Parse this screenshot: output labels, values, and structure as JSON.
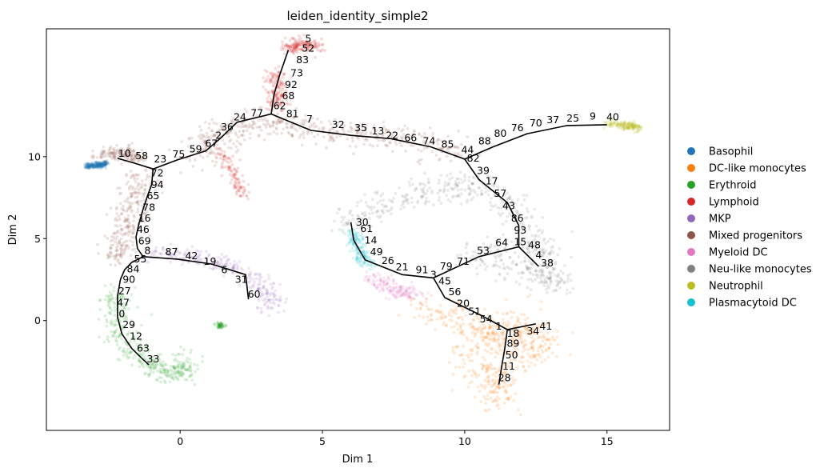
{
  "chart_data": {
    "type": "scatter",
    "title": "leiden_identity_simple2",
    "xlabel": "Dim 1",
    "ylabel": "Dim 2",
    "xlim": [
      -4.7,
      17.2
    ],
    "ylim": [
      -6.7,
      17.8
    ],
    "xticks": [
      0,
      5,
      10,
      15
    ],
    "yticks": [
      0,
      5,
      10
    ],
    "legend_position": "right-outside",
    "legend": [
      {
        "name": "Basophil",
        "color": "#1f77b4"
      },
      {
        "name": "DC-like monocytes",
        "color": "#ff7f0e"
      },
      {
        "name": "Erythroid",
        "color": "#2ca02c"
      },
      {
        "name": "Lymphoid",
        "color": "#d62728"
      },
      {
        "name": "MKP",
        "color": "#9467bd"
      },
      {
        "name": "Mixed progenitors",
        "color": "#8c564b"
      },
      {
        "name": "Myeloid DC",
        "color": "#e377c2"
      },
      {
        "name": "Neu-like monocytes",
        "color": "#7f7f7f"
      },
      {
        "name": "Neutrophil",
        "color": "#bcbd22"
      },
      {
        "name": "Plasmacytoid DC",
        "color": "#17becf"
      }
    ],
    "clusters": [
      {
        "cat": 0,
        "pts": [
          [
            -3.3,
            9.4
          ],
          [
            -3.05,
            9.45
          ],
          [
            -2.8,
            9.5
          ],
          [
            -2.6,
            9.6
          ]
        ],
        "sd": 0.08
      },
      {
        "cat": 5,
        "pts": [
          [
            -2.7,
            10.1
          ],
          [
            -2.0,
            10.2
          ],
          [
            -1.4,
            10.0
          ]
        ],
        "sd": 0.22
      },
      {
        "cat": 5,
        "pts": [
          [
            0.5,
            10.2
          ],
          [
            1.2,
            10.9
          ],
          [
            2.0,
            11.6
          ],
          [
            3.0,
            12.2
          ],
          [
            4.0,
            11.8
          ],
          [
            5.5,
            11.5
          ],
          [
            7.0,
            11.2
          ],
          [
            8.5,
            10.8
          ],
          [
            10.0,
            10.2
          ]
        ],
        "sd": 0.42
      },
      {
        "cat": 5,
        "pts": [
          [
            -1.3,
            9.0
          ],
          [
            -1.6,
            7.5
          ],
          [
            -1.8,
            6.0
          ],
          [
            -2.1,
            4.6
          ],
          [
            -2.2,
            3.8
          ]
        ],
        "sd": 0.3
      },
      {
        "cat": 3,
        "pts": [
          [
            3.8,
            16.6
          ],
          [
            4.3,
            16.9
          ],
          [
            4.8,
            16.7
          ]
        ],
        "sd": 0.2
      },
      {
        "cat": 3,
        "pts": [
          [
            3.3,
            15.2
          ],
          [
            3.4,
            13.8
          ],
          [
            3.35,
            12.9
          ]
        ],
        "sd": 0.18
      },
      {
        "cat": 3,
        "pts": [
          [
            1.4,
            10.3
          ],
          [
            2.3,
            7.5
          ]
        ],
        "sd": 0.15
      },
      {
        "cat": 4,
        "pts": [
          [
            -1.0,
            4.2
          ],
          [
            0.5,
            3.9
          ],
          [
            2.0,
            3.2
          ],
          [
            3.0,
            1.9
          ],
          [
            3.3,
            0.6
          ]
        ],
        "sd": 0.25
      },
      {
        "cat": 2,
        "pts": [
          [
            -2.2,
            1.8
          ],
          [
            -2.3,
            0.5
          ],
          [
            -2.0,
            -1.0
          ],
          [
            -1.5,
            -2.3
          ],
          [
            -0.7,
            -3.0
          ],
          [
            0.0,
            -3.3
          ],
          [
            0.2,
            -2.2
          ]
        ],
        "sd": 0.3
      },
      {
        "cat": 2,
        "pts": [
          [
            1.4,
            -0.3
          ]
        ],
        "sd": 0.08
      },
      {
        "cat": 9,
        "pts": [
          [
            6.0,
            5.5
          ],
          [
            6.3,
            4.3
          ],
          [
            6.6,
            3.3
          ]
        ],
        "sd": 0.15
      },
      {
        "cat": 6,
        "pts": [
          [
            6.8,
            2.6
          ],
          [
            7.5,
            1.9
          ],
          [
            8.3,
            1.6
          ]
        ],
        "sd": 0.22
      },
      {
        "cat": 1,
        "pts": [
          [
            8.5,
            1.0
          ],
          [
            9.5,
            0.2
          ],
          [
            10.5,
            -0.6
          ],
          [
            11.5,
            -1.2
          ],
          [
            12.2,
            -0.6
          ],
          [
            12.8,
            -1.5
          ],
          [
            11.2,
            -2.6
          ],
          [
            11.0,
            -4.0
          ],
          [
            11.2,
            -5.0
          ],
          [
            10.2,
            -1.8
          ],
          [
            12.5,
            1.0
          ]
        ],
        "sd": 0.45
      },
      {
        "cat": 7,
        "pts": [
          [
            5.8,
            5.8
          ],
          [
            7.0,
            7.0
          ],
          [
            8.5,
            7.8
          ],
          [
            10.0,
            8.3
          ],
          [
            11.5,
            7.3
          ],
          [
            12.3,
            5.5
          ],
          [
            12.8,
            3.7
          ],
          [
            13.3,
            2.2
          ],
          [
            12.0,
            3.0
          ],
          [
            10.2,
            4.0
          ],
          [
            12.9,
            4.8
          ]
        ],
        "sd": 0.4
      },
      {
        "cat": 8,
        "pts": [
          [
            15.0,
            12.1
          ],
          [
            15.6,
            11.9
          ],
          [
            16.1,
            11.75
          ]
        ],
        "sd": 0.12
      }
    ],
    "segments": [
      [
        [
          -2.2,
          9.9
        ],
        [
          -1.6,
          9.6
        ],
        [
          -0.95,
          9.25
        ],
        [
          -1.0,
          8.3
        ],
        [
          -1.15,
          7.6
        ],
        [
          -1.3,
          6.8
        ],
        [
          -1.45,
          5.9
        ],
        [
          -1.55,
          5.1
        ],
        [
          -1.5,
          4.4
        ],
        [
          -1.3,
          3.9
        ],
        [
          -1.7,
          3.55
        ],
        [
          -1.95,
          3.1
        ],
        [
          -2.1,
          2.5
        ],
        [
          -2.2,
          1.5
        ],
        [
          -2.2,
          0.2
        ],
        [
          -2.05,
          -0.8
        ],
        [
          -1.7,
          -1.7
        ],
        [
          -1.35,
          -2.3
        ],
        [
          -1.1,
          -2.7
        ]
      ],
      [
        [
          -1.3,
          3.9
        ],
        [
          -0.1,
          3.75
        ],
        [
          1.1,
          3.45
        ],
        [
          2.3,
          2.8
        ],
        [
          2.4,
          1.3
        ]
      ],
      [
        [
          -0.95,
          9.25
        ],
        [
          -0.1,
          9.8
        ],
        [
          0.9,
          10.35
        ],
        [
          1.4,
          11.1
        ],
        [
          2.0,
          12.1
        ],
        [
          3.2,
          12.6
        ],
        [
          3.3,
          13.8
        ],
        [
          3.5,
          15.0
        ],
        [
          3.8,
          16.5
        ]
      ],
      [
        [
          3.2,
          12.6
        ],
        [
          4.6,
          11.6
        ],
        [
          6.0,
          11.3
        ],
        [
          7.4,
          11.1
        ],
        [
          8.8,
          10.6
        ],
        [
          10.0,
          9.85
        ]
      ],
      [
        [
          10.0,
          9.85
        ],
        [
          11.0,
          10.6
        ],
        [
          12.2,
          11.4
        ],
        [
          13.6,
          11.9
        ],
        [
          15.0,
          11.95
        ]
      ],
      [
        [
          10.0,
          9.85
        ],
        [
          10.5,
          8.6
        ],
        [
          11.5,
          7.2
        ],
        [
          11.9,
          5.8
        ],
        [
          11.9,
          4.5
        ],
        [
          12.6,
          3.3
        ]
      ],
      [
        [
          11.9,
          4.5
        ],
        [
          10.5,
          3.9
        ],
        [
          8.9,
          2.6
        ],
        [
          7.8,
          2.8
        ],
        [
          6.5,
          3.7
        ],
        [
          6.1,
          4.9
        ],
        [
          6.0,
          6.0
        ]
      ],
      [
        [
          8.9,
          2.6
        ],
        [
          9.3,
          1.4
        ],
        [
          10.6,
          0.3
        ],
        [
          11.5,
          -0.55
        ],
        [
          12.5,
          -0.2
        ]
      ],
      [
        [
          11.5,
          -0.55
        ],
        [
          11.4,
          -1.8
        ],
        [
          11.3,
          -2.8
        ],
        [
          11.2,
          -3.9
        ]
      ]
    ],
    "node_labels": [
      {
        "t": "5",
        "x": 4.5,
        "y": 17.0
      },
      {
        "t": "52",
        "x": 4.5,
        "y": 16.4
      },
      {
        "t": "83",
        "x": 4.3,
        "y": 15.7
      },
      {
        "t": "73",
        "x": 4.1,
        "y": 14.9
      },
      {
        "t": "92",
        "x": 3.9,
        "y": 14.2
      },
      {
        "t": "68",
        "x": 3.8,
        "y": 13.5
      },
      {
        "t": "62",
        "x": 3.5,
        "y": 12.9
      },
      {
        "t": "81",
        "x": 3.95,
        "y": 12.4
      },
      {
        "t": "7",
        "x": 4.55,
        "y": 12.1
      },
      {
        "t": "32",
        "x": 5.55,
        "y": 11.75
      },
      {
        "t": "35",
        "x": 6.35,
        "y": 11.55
      },
      {
        "t": "13",
        "x": 6.95,
        "y": 11.35
      },
      {
        "t": "22",
        "x": 7.45,
        "y": 11.1
      },
      {
        "t": "66",
        "x": 8.1,
        "y": 10.95
      },
      {
        "t": "74",
        "x": 8.75,
        "y": 10.75
      },
      {
        "t": "85",
        "x": 9.4,
        "y": 10.55
      },
      {
        "t": "44",
        "x": 10.1,
        "y": 10.2
      },
      {
        "t": "88",
        "x": 10.7,
        "y": 10.75
      },
      {
        "t": "80",
        "x": 11.25,
        "y": 11.2
      },
      {
        "t": "76",
        "x": 11.85,
        "y": 11.55
      },
      {
        "t": "70",
        "x": 12.5,
        "y": 11.85
      },
      {
        "t": "37",
        "x": 13.1,
        "y": 12.05
      },
      {
        "t": "25",
        "x": 13.8,
        "y": 12.15
      },
      {
        "t": "9",
        "x": 14.5,
        "y": 12.25
      },
      {
        "t": "40",
        "x": 15.2,
        "y": 12.2
      },
      {
        "t": "82",
        "x": 10.3,
        "y": 9.7
      },
      {
        "t": "39",
        "x": 10.65,
        "y": 8.95
      },
      {
        "t": "17",
        "x": 10.95,
        "y": 8.3
      },
      {
        "t": "57",
        "x": 11.25,
        "y": 7.55
      },
      {
        "t": "43",
        "x": 11.55,
        "y": 6.8
      },
      {
        "t": "86",
        "x": 11.85,
        "y": 6.05
      },
      {
        "t": "93",
        "x": 11.95,
        "y": 5.3
      },
      {
        "t": "15",
        "x": 11.95,
        "y": 4.6
      },
      {
        "t": "48",
        "x": 12.45,
        "y": 4.4
      },
      {
        "t": "4",
        "x": 12.6,
        "y": 3.8
      },
      {
        "t": "38",
        "x": 12.9,
        "y": 3.3
      },
      {
        "t": "64",
        "x": 11.3,
        "y": 4.55
      },
      {
        "t": "53",
        "x": 10.65,
        "y": 4.05
      },
      {
        "t": "71",
        "x": 9.95,
        "y": 3.4
      },
      {
        "t": "79",
        "x": 9.35,
        "y": 3.1
      },
      {
        "t": "3",
        "x": 8.9,
        "y": 2.6
      },
      {
        "t": "91",
        "x": 8.5,
        "y": 2.9
      },
      {
        "t": "21",
        "x": 7.8,
        "y": 3.05
      },
      {
        "t": "26",
        "x": 7.3,
        "y": 3.45
      },
      {
        "t": "49",
        "x": 6.9,
        "y": 4.0
      },
      {
        "t": "14",
        "x": 6.7,
        "y": 4.7
      },
      {
        "t": "61",
        "x": 6.55,
        "y": 5.4
      },
      {
        "t": "30",
        "x": 6.4,
        "y": 5.8
      },
      {
        "t": "45",
        "x": 9.3,
        "y": 2.2
      },
      {
        "t": "56",
        "x": 9.65,
        "y": 1.55
      },
      {
        "t": "20",
        "x": 9.95,
        "y": 0.85
      },
      {
        "t": "51",
        "x": 10.35,
        "y": 0.35
      },
      {
        "t": "54",
        "x": 10.75,
        "y": -0.1
      },
      {
        "t": "1",
        "x": 11.2,
        "y": -0.55
      },
      {
        "t": "18",
        "x": 11.7,
        "y": -1.0
      },
      {
        "t": "34",
        "x": 12.4,
        "y": -0.85
      },
      {
        "t": "41",
        "x": 12.85,
        "y": -0.55
      },
      {
        "t": "89",
        "x": 11.7,
        "y": -1.6
      },
      {
        "t": "50",
        "x": 11.65,
        "y": -2.3
      },
      {
        "t": "11",
        "x": 11.55,
        "y": -3.0
      },
      {
        "t": "28",
        "x": 11.4,
        "y": -3.7
      },
      {
        "t": "10",
        "x": -1.95,
        "y": 10.0
      },
      {
        "t": "58",
        "x": -1.35,
        "y": 9.85
      },
      {
        "t": "23",
        "x": -0.7,
        "y": 9.65
      },
      {
        "t": "75",
        "x": -0.05,
        "y": 9.95
      },
      {
        "t": "59",
        "x": 0.55,
        "y": 10.25
      },
      {
        "t": "67",
        "x": 1.1,
        "y": 10.6
      },
      {
        "t": "2",
        "x": 1.35,
        "y": 11.1
      },
      {
        "t": "36",
        "x": 1.65,
        "y": 11.6
      },
      {
        "t": "24",
        "x": 2.1,
        "y": 12.2
      },
      {
        "t": "77",
        "x": 2.7,
        "y": 12.45
      },
      {
        "t": "72",
        "x": -0.8,
        "y": 8.8
      },
      {
        "t": "94",
        "x": -0.8,
        "y": 8.1
      },
      {
        "t": "65",
        "x": -0.95,
        "y": 7.4
      },
      {
        "t": "78",
        "x": -1.1,
        "y": 6.7
      },
      {
        "t": "16",
        "x": -1.25,
        "y": 6.05
      },
      {
        "t": "46",
        "x": -1.3,
        "y": 5.35
      },
      {
        "t": "69",
        "x": -1.25,
        "y": 4.65
      },
      {
        "t": "8",
        "x": -1.15,
        "y": 4.05
      },
      {
        "t": "87",
        "x": -0.3,
        "y": 4.0
      },
      {
        "t": "42",
        "x": 0.4,
        "y": 3.75
      },
      {
        "t": "19",
        "x": 1.05,
        "y": 3.4
      },
      {
        "t": "6",
        "x": 1.55,
        "y": 2.9
      },
      {
        "t": "31",
        "x": 2.15,
        "y": 2.3
      },
      {
        "t": "60",
        "x": 2.6,
        "y": 1.4
      },
      {
        "t": "55",
        "x": -1.4,
        "y": 3.55
      },
      {
        "t": "84",
        "x": -1.65,
        "y": 2.95
      },
      {
        "t": "90",
        "x": -1.8,
        "y": 2.3
      },
      {
        "t": "27",
        "x": -1.95,
        "y": 1.6
      },
      {
        "t": "47",
        "x": -2.0,
        "y": 0.9
      },
      {
        "t": "0",
        "x": -2.05,
        "y": 0.2
      },
      {
        "t": "29",
        "x": -1.8,
        "y": -0.45
      },
      {
        "t": "12",
        "x": -1.55,
        "y": -1.15
      },
      {
        "t": "63",
        "x": -1.3,
        "y": -1.9
      },
      {
        "t": "33",
        "x": -0.95,
        "y": -2.55
      }
    ]
  }
}
